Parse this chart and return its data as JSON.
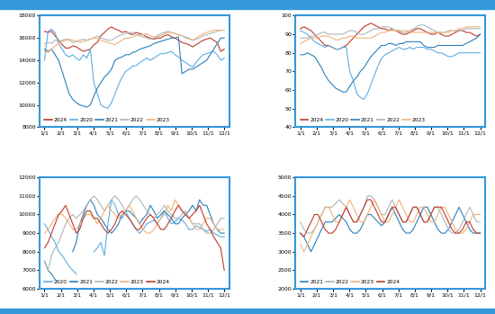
{
  "colors": {
    "2024": "#c0392b",
    "2020": "#5dade2",
    "2021": "#2980b9",
    "2022": "#aab7b8",
    "2023": "#f0b27a"
  },
  "xtick_labels": [
    "1/1",
    "2/1",
    "3/1",
    "4/1",
    "5/1",
    "6/1",
    "7/1",
    "8/1",
    "9/1",
    "10/1",
    "11/1",
    "12/1"
  ],
  "border_color": "#3498db",
  "background_color": "#ffffff"
}
